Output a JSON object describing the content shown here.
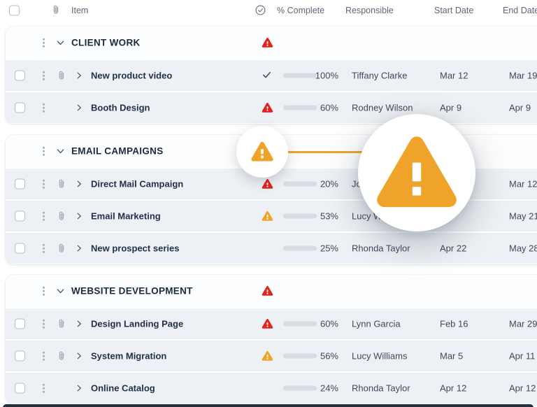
{
  "header": {
    "item": "Item",
    "percent_complete": "% Complete",
    "responsible": "Responsible",
    "start_date": "Start Date",
    "end_date": "End Date",
    "icons": {
      "attachment_column": "paperclip-icon",
      "status_column": "check-circle-icon"
    }
  },
  "colors": {
    "complete_green": "#2BC96C",
    "at_risk_red": "#E0241B",
    "warning_orange": "#F0A32B",
    "progress_blue": "#3E97E2",
    "row_bg": "#EDF0F4",
    "bar_track": "#D8DCE2",
    "bottom_bar": "#22303F"
  },
  "sections": [
    {
      "title": "CLIENT WORK",
      "status": "at-risk",
      "rows": [
        {
          "name": "New product video",
          "attachment": true,
          "status": "complete",
          "percent": "100%",
          "bar": {
            "width": "100%",
            "color": "#2BC96C"
          },
          "responsible": "Tiffany Clarke",
          "start": "Mar 12",
          "end": "Mar 19"
        },
        {
          "name": "Booth Design",
          "attachment": false,
          "status": "at-risk",
          "percent": "60%",
          "bar": {
            "width": "60%",
            "color": "#E0241B"
          },
          "responsible": "Rodney Wilson",
          "start": "Apr 9",
          "end": "Apr 9"
        }
      ]
    },
    {
      "title": "EMAIL CAMPAIGNS",
      "status": "warning",
      "rows": [
        {
          "name": "Direct Mail Campaign",
          "attachment": true,
          "status": "at-risk",
          "percent": "20%",
          "bar": {
            "width": "20%",
            "color": "#E0241B"
          },
          "responsible": "Jon",
          "start": "",
          "end": "Mar 12"
        },
        {
          "name": "Email Marketing",
          "attachment": true,
          "status": "warning",
          "percent": "53%",
          "bar": {
            "width": "53%",
            "color": "#F0A32B"
          },
          "responsible": "Lucy Williams",
          "start": "",
          "end": "May 21"
        },
        {
          "name": "New prospect series",
          "attachment": true,
          "status": "none",
          "percent": "25%",
          "bar": {
            "width": "25%",
            "color": "#3E97E2"
          },
          "responsible": "Rhonda Taylor",
          "start": "Apr 22",
          "end": "May 28"
        }
      ]
    },
    {
      "title": "WEBSITE DEVELOPMENT",
      "status": "at-risk",
      "rows": [
        {
          "name": "Design Landing Page",
          "attachment": true,
          "status": "at-risk",
          "percent": "60%",
          "bar": {
            "width": "60%",
            "color": "#E0241B"
          },
          "responsible": "Lynn Garcia",
          "start": "Feb 16",
          "end": "Mar 29"
        },
        {
          "name": "System Migration",
          "attachment": true,
          "status": "warning",
          "percent": "56%",
          "bar": {
            "width": "56%",
            "color": "#F0A32B"
          },
          "responsible": "Lucy Williams",
          "start": "Mar 5",
          "end": "Apr 11"
        },
        {
          "name": "Online Catalog",
          "attachment": false,
          "status": "none",
          "percent": "24%",
          "bar": {
            "width": "24%",
            "color": "#3E97E2"
          },
          "responsible": "Rhonda Taylor",
          "start": "Apr 12",
          "end": "Apr 12"
        }
      ]
    }
  ],
  "overlay": {
    "type": "zoom-callout",
    "magnified_icon": "warning-icon",
    "icon_color": "#F0A32B",
    "target_section": "EMAIL CAMPAIGNS"
  }
}
